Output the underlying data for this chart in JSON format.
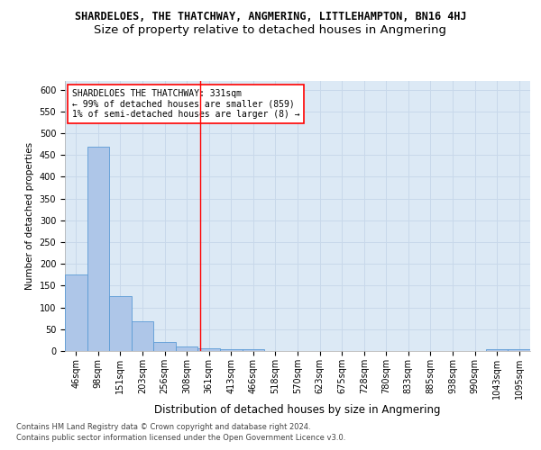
{
  "title": "SHARDELOES, THE THATCHWAY, ANGMERING, LITTLEHAMPTON, BN16 4HJ",
  "subtitle": "Size of property relative to detached houses in Angmering",
  "xlabel": "Distribution of detached houses by size in Angmering",
  "ylabel": "Number of detached properties",
  "categories": [
    "46sqm",
    "98sqm",
    "151sqm",
    "203sqm",
    "256sqm",
    "308sqm",
    "361sqm",
    "413sqm",
    "466sqm",
    "518sqm",
    "570sqm",
    "623sqm",
    "675sqm",
    "728sqm",
    "780sqm",
    "833sqm",
    "885sqm",
    "938sqm",
    "990sqm",
    "1043sqm",
    "1095sqm"
  ],
  "values": [
    175,
    470,
    127,
    68,
    20,
    10,
    7,
    5,
    5,
    0,
    0,
    0,
    0,
    0,
    0,
    0,
    0,
    0,
    0,
    5,
    5
  ],
  "bar_color": "#aec6e8",
  "bar_edge_color": "#5b9bd5",
  "grid_color": "#c8d8ea",
  "background_color": "#dce9f5",
  "red_line_x": 5.62,
  "legend_text_line1": "SHARDELOES THE THATCHWAY: 331sqm",
  "legend_text_line2": "← 99% of detached houses are smaller (859)",
  "legend_text_line3": "1% of semi-detached houses are larger (8) →",
  "legend_box_color": "white",
  "legend_box_edge": "red",
  "footer1": "Contains HM Land Registry data © Crown copyright and database right 2024.",
  "footer2": "Contains public sector information licensed under the Open Government Licence v3.0.",
  "ylim": [
    0,
    620
  ],
  "yticks": [
    0,
    50,
    100,
    150,
    200,
    250,
    300,
    350,
    400,
    450,
    500,
    550,
    600
  ],
  "title_fontsize": 8.5,
  "subtitle_fontsize": 9.5,
  "xlabel_fontsize": 8.5,
  "ylabel_fontsize": 7.5,
  "tick_fontsize": 7,
  "legend_fontsize": 7,
  "footer_fontsize": 6
}
